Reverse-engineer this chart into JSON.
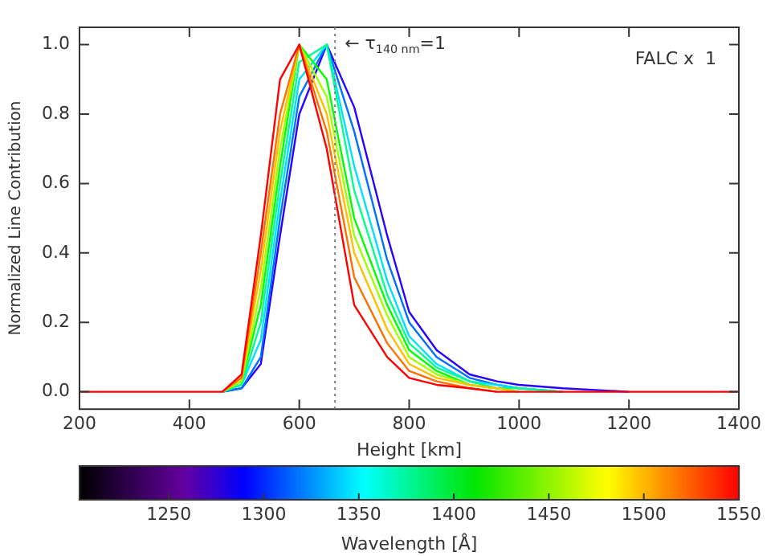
{
  "chart_data": {
    "type": "line",
    "xlabel": "Height [km]",
    "ylabel": "Normalized Line Contribution",
    "clabel": "Wavelength [Å]",
    "x": [
      200,
      420,
      460,
      495,
      530,
      565,
      600,
      650,
      700,
      760,
      800,
      850,
      910,
      960,
      1000,
      1080,
      1200,
      1400
    ],
    "series": [
      {
        "color": "#2a00ff",
        "values": [
          null,
          null,
          0,
          0.01,
          0.08,
          0.45,
          0.8,
          1.0,
          0.82,
          0.45,
          0.23,
          0.12,
          0.05,
          0.03,
          0.02,
          0.01,
          0,
          null
        ]
      },
      {
        "color": "#0070ff",
        "values": [
          null,
          null,
          0,
          0.01,
          0.1,
          0.5,
          0.85,
          1.0,
          0.75,
          0.38,
          0.2,
          0.1,
          0.04,
          0.02,
          0.01,
          0,
          null,
          null
        ]
      },
      {
        "color": "#00e0ff",
        "values": [
          null,
          null,
          0,
          0.02,
          0.15,
          0.55,
          0.9,
          1.0,
          0.65,
          0.32,
          0.16,
          0.08,
          0.03,
          0.02,
          0.01,
          0,
          null,
          null
        ]
      },
      {
        "color": "#00ff90",
        "values": [
          null,
          null,
          0,
          0.02,
          0.2,
          0.6,
          0.95,
          1.0,
          0.58,
          0.28,
          0.14,
          0.07,
          0.03,
          0.01,
          0.01,
          0,
          null,
          null
        ]
      },
      {
        "color": "#00ff00",
        "values": [
          null,
          null,
          0,
          0.03,
          0.25,
          0.65,
          1.0,
          0.9,
          0.5,
          0.25,
          0.12,
          0.06,
          0.02,
          0.01,
          0,
          null,
          null,
          null
        ]
      },
      {
        "color": "#a0ff00",
        "values": [
          null,
          null,
          0,
          0.03,
          0.3,
          0.7,
          1.0,
          0.85,
          0.45,
          0.22,
          0.1,
          0.05,
          0.02,
          0.01,
          0,
          null,
          null,
          null
        ]
      },
      {
        "color": "#ffc000",
        "values": [
          null,
          null,
          0,
          0.04,
          0.35,
          0.75,
          1.0,
          0.8,
          0.4,
          0.18,
          0.08,
          0.04,
          0.02,
          0.01,
          0,
          null,
          null,
          null
        ]
      },
      {
        "color": "#ff7000",
        "values": [
          null,
          null,
          0,
          0.04,
          0.4,
          0.8,
          1.0,
          0.75,
          0.33,
          0.14,
          0.06,
          0.03,
          0.01,
          0,
          null,
          null,
          null,
          null
        ]
      },
      {
        "color": "#ff0000",
        "values": [
          0,
          0,
          0,
          0.05,
          0.45,
          0.9,
          1.0,
          0.7,
          0.25,
          0.1,
          0.04,
          0.02,
          0.01,
          0,
          0,
          0,
          0,
          0
        ]
      }
    ],
    "xlim": [
      200,
      1400
    ],
    "xticks": [
      200,
      400,
      600,
      800,
      1000,
      1200,
      1400
    ],
    "ylim": [
      -0.05,
      1.05
    ],
    "yticks": [
      {
        "value": 0,
        "label": "0.0"
      },
      {
        "value": 0.2,
        "label": "0.2"
      },
      {
        "value": 0.4,
        "label": "0.4"
      },
      {
        "value": 0.6,
        "label": "0.6"
      },
      {
        "value": 0.8,
        "label": "0.8"
      },
      {
        "value": 1,
        "label": "1.0"
      }
    ],
    "clim": [
      1203,
      1550
    ],
    "cticks": [
      1250,
      1300,
      1350,
      1400,
      1450,
      1500,
      1550
    ],
    "ref_lines": [
      {
        "axis": "x",
        "value": 665,
        "color": "#808080",
        "line_style": "dotted"
      }
    ],
    "annotations": [
      "FALC x  1",
      {
        "text": "← τ$_{140 nm}$=1",
        "x": 665,
        "y": 1.0
      }
    ],
    "grid": false,
    "legend": false,
    "marker": "none",
    "line_style": "solid"
  }
}
